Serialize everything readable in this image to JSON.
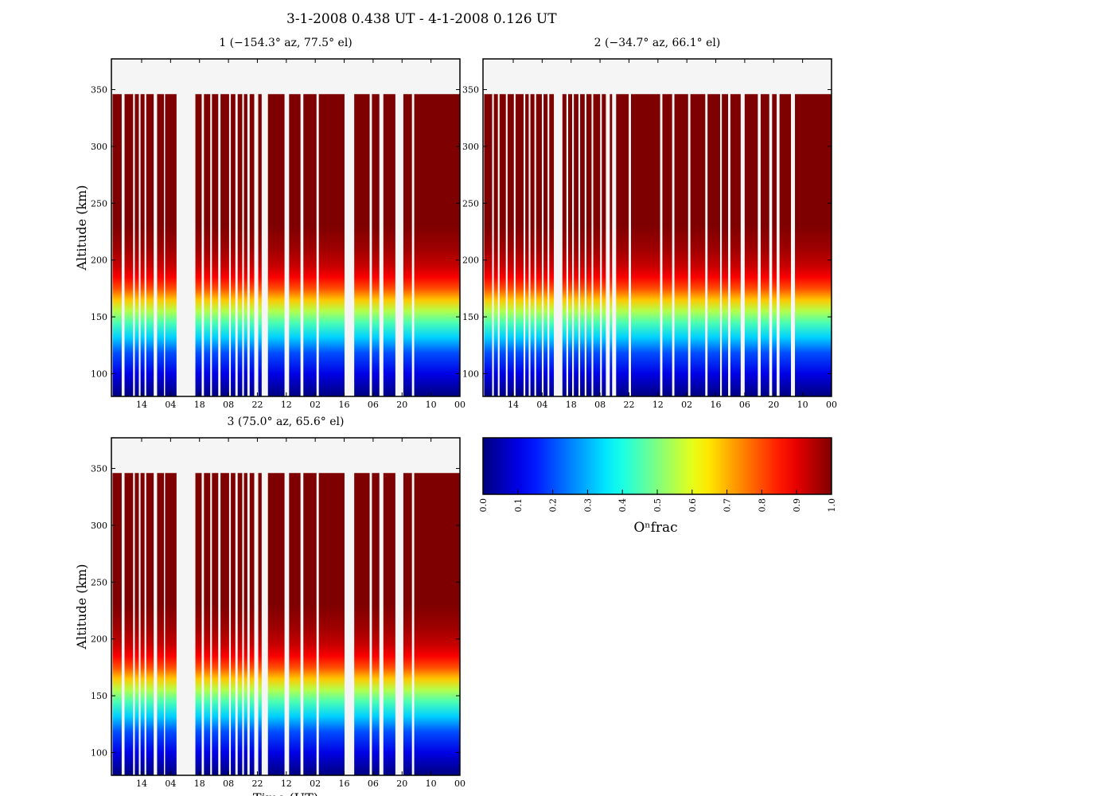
{
  "figure_title": "3-1-2008 0.438 UT - 4-1-2008 0.126 UT",
  "chart_data": [
    {
      "type": "heatmap",
      "title": "1 (−154.3° az, 77.5° el)",
      "xlabel": "",
      "ylabel": "Altitude (km)",
      "xticks": [
        "14",
        "04",
        "18",
        "08",
        "22",
        "12",
        "02",
        "16",
        "06",
        "20",
        "10",
        "00"
      ],
      "yticks": [
        100,
        150,
        200,
        250,
        300,
        350
      ],
      "ylim": [
        80,
        377
      ],
      "data_top_km": 346,
      "data_segments": [
        [
          0.2,
          1.8
        ],
        [
          2.3,
          3.8
        ],
        [
          4.1,
          4.8
        ],
        [
          5.1,
          5.8
        ],
        [
          6.1,
          7.4
        ],
        [
          8.0,
          9.2
        ],
        [
          9.4,
          11.4
        ],
        [
          14.7,
          15.8
        ],
        [
          16.2,
          17.3
        ],
        [
          17.6,
          18.7
        ],
        [
          19.1,
          20.6
        ],
        [
          20.9,
          21.7
        ],
        [
          22.1,
          22.9
        ],
        [
          23.2,
          23.8
        ],
        [
          24.2,
          25.0
        ],
        [
          25.7,
          26.3
        ],
        [
          27.4,
          30.3
        ],
        [
          31.1,
          33.1
        ],
        [
          33.6,
          35.9
        ],
        [
          36.3,
          40.8
        ],
        [
          42.5,
          45.2
        ],
        [
          45.6,
          46.9
        ],
        [
          47.6,
          49.7
        ],
        [
          51.1,
          52.6
        ],
        [
          53.0,
          61.0
        ]
      ],
      "o_frac_profile": [
        {
          "alt_km": 80,
          "frac": 0.0
        },
        {
          "alt_km": 100,
          "frac": 0.1
        },
        {
          "alt_km": 118,
          "frac": 0.2
        },
        {
          "alt_km": 132,
          "frac": 0.33
        },
        {
          "alt_km": 145,
          "frac": 0.45
        },
        {
          "alt_km": 155,
          "frac": 0.55
        },
        {
          "alt_km": 165,
          "frac": 0.68
        },
        {
          "alt_km": 175,
          "frac": 0.8
        },
        {
          "alt_km": 185,
          "frac": 0.88
        },
        {
          "alt_km": 195,
          "frac": 0.93
        },
        {
          "alt_km": 210,
          "frac": 0.97
        },
        {
          "alt_km": 230,
          "frac": 1.0
        }
      ]
    },
    {
      "type": "heatmap",
      "title": "2 (−34.7° az, 66.1° el)",
      "xlabel": "",
      "ylabel": "",
      "xticks": [
        "14",
        "04",
        "18",
        "08",
        "22",
        "12",
        "02",
        "16",
        "06",
        "20",
        "10",
        "00"
      ],
      "yticks": [
        100,
        150,
        200,
        250,
        300,
        350
      ],
      "ylim": [
        80,
        377
      ],
      "data_top_km": 346,
      "data_segments": [
        [
          0.2,
          1.6
        ],
        [
          1.9,
          2.6
        ],
        [
          2.9,
          4.0
        ],
        [
          4.3,
          5.4
        ],
        [
          5.7,
          7.1
        ],
        [
          7.4,
          8.0
        ],
        [
          8.3,
          9.0
        ],
        [
          9.3,
          10.3
        ],
        [
          10.6,
          11.3
        ],
        [
          11.6,
          12.4
        ],
        [
          13.9,
          14.6
        ],
        [
          14.9,
          15.6
        ],
        [
          15.9,
          16.7
        ],
        [
          17.0,
          17.8
        ],
        [
          18.1,
          19.0
        ],
        [
          19.3,
          20.5
        ],
        [
          20.8,
          21.5
        ],
        [
          22.2,
          22.6
        ],
        [
          23.3,
          25.5
        ],
        [
          25.9,
          31.0
        ],
        [
          31.4,
          33.1
        ],
        [
          33.5,
          35.9
        ],
        [
          36.3,
          38.9
        ],
        [
          39.3,
          41.5
        ],
        [
          41.8,
          42.9
        ],
        [
          43.3,
          45.1
        ],
        [
          45.8,
          48.1
        ],
        [
          48.6,
          50.1
        ],
        [
          50.6,
          51.4
        ],
        [
          51.9,
          53.9
        ],
        [
          54.6,
          61.0
        ]
      ],
      "o_frac_profile": [
        {
          "alt_km": 80,
          "frac": 0.0
        },
        {
          "alt_km": 100,
          "frac": 0.1
        },
        {
          "alt_km": 118,
          "frac": 0.2
        },
        {
          "alt_km": 132,
          "frac": 0.33
        },
        {
          "alt_km": 145,
          "frac": 0.45
        },
        {
          "alt_km": 155,
          "frac": 0.55
        },
        {
          "alt_km": 165,
          "frac": 0.68
        },
        {
          "alt_km": 175,
          "frac": 0.8
        },
        {
          "alt_km": 185,
          "frac": 0.88
        },
        {
          "alt_km": 195,
          "frac": 0.93
        },
        {
          "alt_km": 210,
          "frac": 0.97
        },
        {
          "alt_km": 230,
          "frac": 1.0
        }
      ]
    },
    {
      "type": "heatmap",
      "title": "3 (75.0° az, 65.6° el)",
      "xlabel": "Time (UT)",
      "ylabel": "Altitude (km)",
      "xticks": [
        "14",
        "04",
        "18",
        "08",
        "22",
        "12",
        "02",
        "16",
        "06",
        "20",
        "10",
        "00"
      ],
      "yticks": [
        100,
        150,
        200,
        250,
        300,
        350
      ],
      "ylim": [
        80,
        377
      ],
      "data_top_km": 346,
      "data_segments": [
        [
          0.2,
          1.8
        ],
        [
          2.3,
          3.8
        ],
        [
          4.1,
          4.8
        ],
        [
          5.1,
          5.8
        ],
        [
          6.1,
          7.4
        ],
        [
          8.0,
          9.2
        ],
        [
          9.4,
          11.4
        ],
        [
          14.7,
          15.8
        ],
        [
          16.2,
          17.3
        ],
        [
          17.6,
          18.7
        ],
        [
          19.1,
          20.6
        ],
        [
          20.9,
          21.7
        ],
        [
          22.1,
          22.9
        ],
        [
          23.2,
          23.8
        ],
        [
          24.2,
          25.0
        ],
        [
          25.7,
          26.3
        ],
        [
          27.4,
          30.3
        ],
        [
          31.1,
          33.1
        ],
        [
          33.6,
          35.9
        ],
        [
          36.3,
          40.8
        ],
        [
          42.5,
          45.2
        ],
        [
          45.6,
          46.9
        ],
        [
          47.6,
          49.7
        ],
        [
          51.1,
          52.6
        ],
        [
          53.0,
          61.0
        ]
      ],
      "o_frac_profile": [
        {
          "alt_km": 80,
          "frac": 0.0
        },
        {
          "alt_km": 100,
          "frac": 0.1
        },
        {
          "alt_km": 118,
          "frac": 0.2
        },
        {
          "alt_km": 132,
          "frac": 0.33
        },
        {
          "alt_km": 145,
          "frac": 0.45
        },
        {
          "alt_km": 155,
          "frac": 0.55
        },
        {
          "alt_km": 165,
          "frac": 0.68
        },
        {
          "alt_km": 175,
          "frac": 0.8
        },
        {
          "alt_km": 185,
          "frac": 0.88
        },
        {
          "alt_km": 195,
          "frac": 0.93
        },
        {
          "alt_km": 210,
          "frac": 0.97
        },
        {
          "alt_km": 230,
          "frac": 1.0
        }
      ]
    }
  ],
  "colorbar": {
    "label": "Oⁿfrac",
    "ticks": [
      "0.0",
      "0.1",
      "0.2",
      "0.3",
      "0.4",
      "0.5",
      "0.6",
      "0.7",
      "0.8",
      "0.9",
      "1.0"
    ],
    "range": [
      0.0,
      1.0
    ],
    "colormap": "jet"
  },
  "colors": {
    "nodata": "#f5f5f5",
    "jet_stops": [
      "#00007f",
      "#0000ff",
      "#007fff",
      "#00ffff",
      "#7fff7f",
      "#ffff00",
      "#ff7f00",
      "#ff0000",
      "#7f0000"
    ]
  }
}
